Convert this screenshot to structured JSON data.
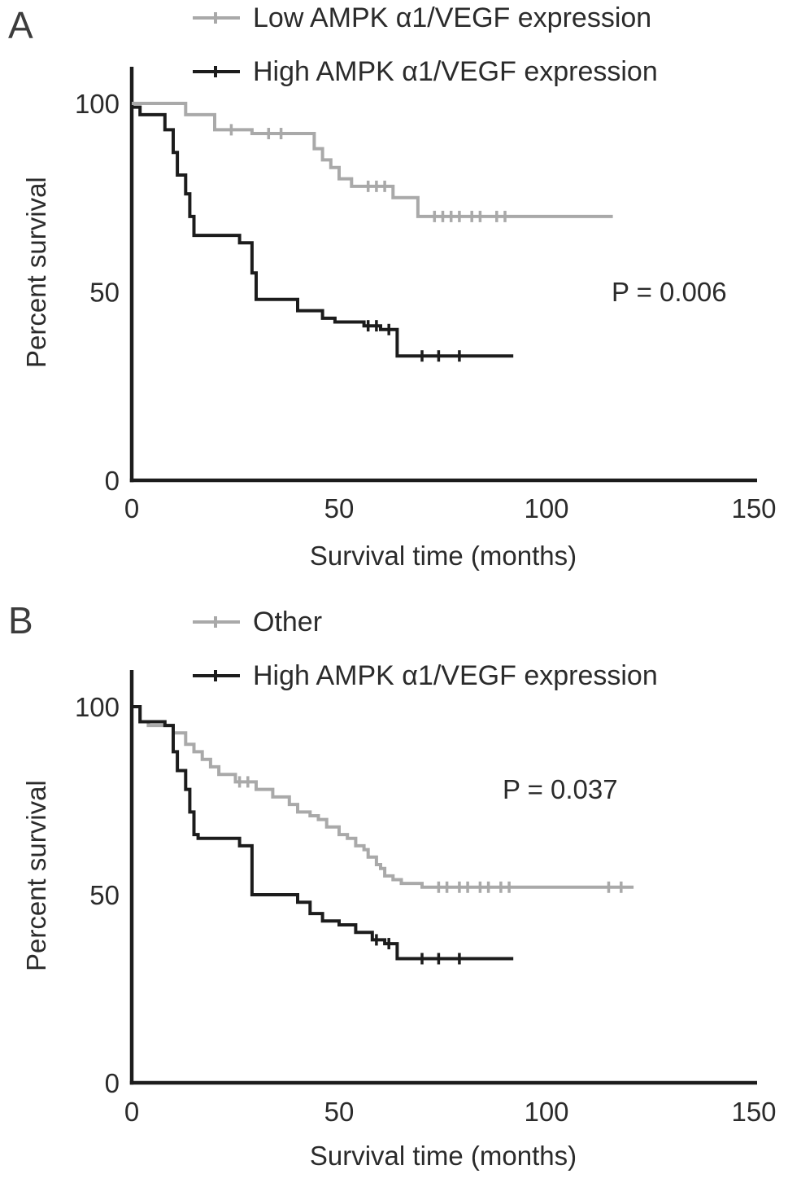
{
  "figure": {
    "background": "#ffffff",
    "axis_color": "#1c1c1c",
    "text_color": "#2b2b2b"
  },
  "chart_data": [
    {
      "type": "line",
      "subtype": "kaplan-meier-step",
      "panel_label": "A",
      "xlabel": "Survival time (months)",
      "ylabel": "Percent survival",
      "xlim": [
        0,
        150
      ],
      "ylim": [
        0,
        100
      ],
      "xticks": [
        0,
        50,
        100,
        150
      ],
      "yticks": [
        0,
        50,
        100
      ],
      "grid": false,
      "legend_position": "top",
      "annotation": "P = 0.006",
      "series": [
        {
          "name": "Low AMPK α1/VEGF expression",
          "color": "#a9a9a9",
          "steps": [
            [
              0,
              100
            ],
            [
              13,
              100
            ],
            [
              13,
              97
            ],
            [
              20,
              97
            ],
            [
              20,
              93
            ],
            [
              29,
              93
            ],
            [
              29,
              92
            ],
            [
              44,
              92
            ],
            [
              44,
              88
            ],
            [
              46,
              88
            ],
            [
              46,
              85
            ],
            [
              48,
              85
            ],
            [
              48,
              83
            ],
            [
              50,
              83
            ],
            [
              50,
              80
            ],
            [
              53,
              80
            ],
            [
              53,
              78
            ],
            [
              63,
              78
            ],
            [
              63,
              75
            ],
            [
              69,
              75
            ],
            [
              69,
              70
            ],
            [
              116,
              70
            ]
          ],
          "censor_ticks": [
            [
              24,
              93
            ],
            [
              33,
              92
            ],
            [
              36,
              92
            ],
            [
              57,
              78
            ],
            [
              59,
              78
            ],
            [
              61,
              78
            ],
            [
              73,
              70
            ],
            [
              75,
              70
            ],
            [
              77,
              70
            ],
            [
              79,
              70
            ],
            [
              82,
              70
            ],
            [
              84,
              70
            ],
            [
              88,
              70
            ],
            [
              90,
              70
            ]
          ]
        },
        {
          "name": "High AMPK α1/VEGF expression",
          "color": "#1c1c1c",
          "steps": [
            [
              0,
              99
            ],
            [
              2,
              99
            ],
            [
              2,
              97
            ],
            [
              8,
              97
            ],
            [
              8,
              93
            ],
            [
              10,
              93
            ],
            [
              10,
              87
            ],
            [
              11,
              87
            ],
            [
              11,
              81
            ],
            [
              13,
              81
            ],
            [
              13,
              76
            ],
            [
              14,
              76
            ],
            [
              14,
              70
            ],
            [
              15,
              70
            ],
            [
              15,
              65
            ],
            [
              26,
              65
            ],
            [
              26,
              63
            ],
            [
              29,
              63
            ],
            [
              29,
              55
            ],
            [
              30,
              55
            ],
            [
              30,
              48
            ],
            [
              40,
              48
            ],
            [
              40,
              45
            ],
            [
              46,
              45
            ],
            [
              46,
              43
            ],
            [
              49,
              43
            ],
            [
              49,
              42
            ],
            [
              56,
              42
            ],
            [
              56,
              41
            ],
            [
              60,
              41
            ],
            [
              60,
              40
            ],
            [
              64,
              40
            ],
            [
              64,
              33
            ],
            [
              92,
              33
            ]
          ],
          "censor_ticks": [
            [
              57,
              41
            ],
            [
              59,
              41
            ],
            [
              62,
              40
            ],
            [
              70,
              33
            ],
            [
              74,
              33
            ],
            [
              79,
              33
            ]
          ]
        }
      ]
    },
    {
      "type": "line",
      "subtype": "kaplan-meier-step",
      "panel_label": "B",
      "xlabel": "Survival time (months)",
      "ylabel": "Percent survival",
      "xlim": [
        0,
        150
      ],
      "ylim": [
        0,
        100
      ],
      "xticks": [
        0,
        50,
        100,
        150
      ],
      "yticks": [
        0,
        50,
        100
      ],
      "grid": false,
      "legend_position": "top",
      "annotation": "P = 0.037",
      "series": [
        {
          "name": "Other",
          "color": "#a9a9a9",
          "steps": [
            [
              0,
              100
            ],
            [
              2,
              100
            ],
            [
              2,
              96
            ],
            [
              4,
              96
            ],
            [
              4,
              95
            ],
            [
              10,
              95
            ],
            [
              10,
              93
            ],
            [
              13,
              93
            ],
            [
              13,
              90
            ],
            [
              15,
              90
            ],
            [
              15,
              88
            ],
            [
              17,
              88
            ],
            [
              17,
              86
            ],
            [
              19,
              86
            ],
            [
              19,
              84
            ],
            [
              21,
              84
            ],
            [
              21,
              82
            ],
            [
              25,
              82
            ],
            [
              25,
              80
            ],
            [
              30,
              80
            ],
            [
              30,
              78
            ],
            [
              34,
              78
            ],
            [
              34,
              76
            ],
            [
              38,
              76
            ],
            [
              38,
              74
            ],
            [
              40,
              74
            ],
            [
              40,
              72
            ],
            [
              43,
              72
            ],
            [
              43,
              71
            ],
            [
              45,
              71
            ],
            [
              45,
              70
            ],
            [
              47,
              70
            ],
            [
              47,
              68
            ],
            [
              50,
              68
            ],
            [
              50,
              66
            ],
            [
              52,
              66
            ],
            [
              52,
              65
            ],
            [
              54,
              65
            ],
            [
              54,
              63
            ],
            [
              56,
              63
            ],
            [
              56,
              62
            ],
            [
              57,
              62
            ],
            [
              57,
              60
            ],
            [
              59,
              60
            ],
            [
              59,
              58
            ],
            [
              60,
              58
            ],
            [
              60,
              57
            ],
            [
              61,
              57
            ],
            [
              61,
              55
            ],
            [
              63,
              55
            ],
            [
              63,
              54
            ],
            [
              65,
              54
            ],
            [
              65,
              53
            ],
            [
              70,
              53
            ],
            [
              70,
              52
            ],
            [
              121,
              52
            ]
          ],
          "censor_ticks": [
            [
              26,
              80
            ],
            [
              28,
              80
            ],
            [
              74,
              52
            ],
            [
              76,
              52
            ],
            [
              79,
              52
            ],
            [
              81,
              52
            ],
            [
              84,
              52
            ],
            [
              86,
              52
            ],
            [
              89,
              52
            ],
            [
              91,
              52
            ],
            [
              115,
              52
            ],
            [
              118,
              52
            ]
          ]
        },
        {
          "name": "High AMPK α1/VEGF expression",
          "color": "#1c1c1c",
          "steps": [
            [
              0,
              100
            ],
            [
              2,
              100
            ],
            [
              2,
              96
            ],
            [
              8,
              96
            ],
            [
              8,
              95
            ],
            [
              10,
              95
            ],
            [
              10,
              88
            ],
            [
              11,
              88
            ],
            [
              11,
              83
            ],
            [
              13,
              83
            ],
            [
              13,
              78
            ],
            [
              14,
              78
            ],
            [
              14,
              72
            ],
            [
              15,
              72
            ],
            [
              15,
              66
            ],
            [
              16,
              66
            ],
            [
              16,
              65
            ],
            [
              26,
              65
            ],
            [
              26,
              63
            ],
            [
              29,
              63
            ],
            [
              29,
              50
            ],
            [
              40,
              50
            ],
            [
              40,
              48
            ],
            [
              43,
              48
            ],
            [
              43,
              45
            ],
            [
              46,
              45
            ],
            [
              46,
              43
            ],
            [
              50,
              43
            ],
            [
              50,
              42
            ],
            [
              54,
              42
            ],
            [
              54,
              40
            ],
            [
              58,
              40
            ],
            [
              58,
              38
            ],
            [
              61,
              38
            ],
            [
              61,
              37
            ],
            [
              64,
              37
            ],
            [
              64,
              33
            ],
            [
              92,
              33
            ]
          ],
          "censor_ticks": [
            [
              59,
              38
            ],
            [
              62,
              37
            ],
            [
              70,
              33
            ],
            [
              74,
              33
            ],
            [
              79,
              33
            ]
          ]
        }
      ]
    }
  ]
}
